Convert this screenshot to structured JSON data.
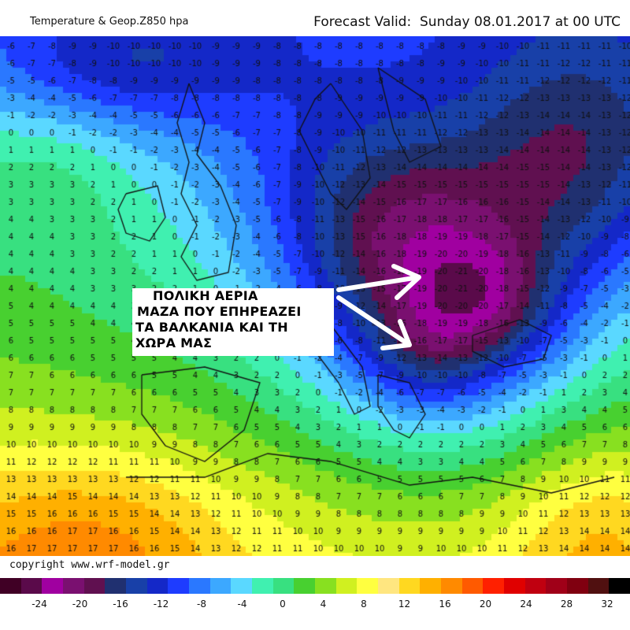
{
  "header": {
    "title": "Temperature & Geop.Z850 hpa",
    "forecast": "Forecast Valid:  Sunday 08.01.2017 at 00 UTC"
  },
  "annotation": {
    "lines": [
      "ΠΟΛΙΚΗ ΑΕΡΙΑ",
      "ΜΑΖΑ ΠΟΥ ΕΠΗΡΕΑΖΕΙ",
      "ΤΑ ΒΑΛΚΑΝΙΑ ΚΑΙ ΤΗ",
      "ΧΩΡΑ ΜΑΣ"
    ]
  },
  "footer": {
    "copyright": "copyright www.wrf-model.gr"
  },
  "legend": {
    "labels": [
      "-24",
      "-20",
      "-16",
      "-12",
      "-8",
      "-4",
      "0",
      "4",
      "8",
      "12",
      "16",
      "20",
      "24",
      "28",
      "32"
    ],
    "colors": [
      "#400025",
      "#5a0a4a",
      "#a000a0",
      "#7a1070",
      "#601050",
      "#203070",
      "#1840a8",
      "#1428c8",
      "#1e3cff",
      "#2a78ff",
      "#3ca8ff",
      "#5ad8ff",
      "#40f0b0",
      "#38e080",
      "#48d030",
      "#88e020",
      "#d0f020",
      "#ffff40",
      "#ffd820",
      "#ffb000",
      "#ff8a00",
      "#ff5a00",
      "#ff2000",
      "#e00000",
      "#c00010",
      "#a00018",
      "#800010",
      "#501010",
      "#300000"
    ],
    "columns": 30
  },
  "map": {
    "description_colors": {
      "very_cold": "#6a0a5a",
      "cold_core": "#1428c8",
      "cool": "#3ca8ff",
      "mild": "#38e080",
      "warm": "#d0f020",
      "hot": "#ffb000"
    }
  }
}
